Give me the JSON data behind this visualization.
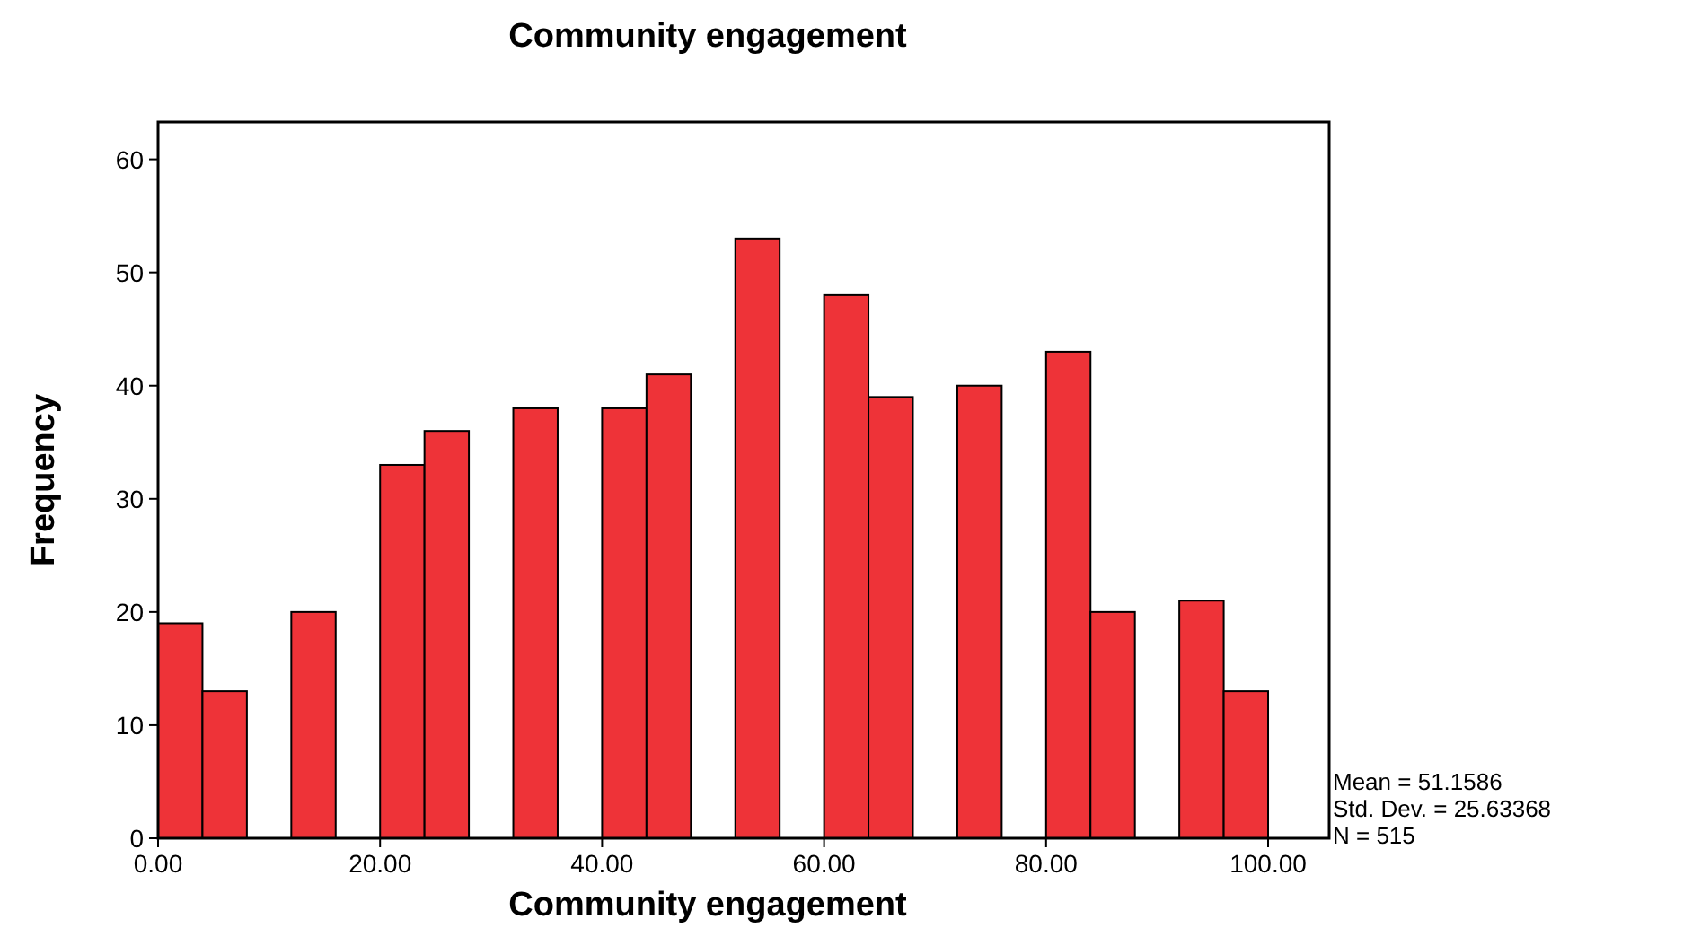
{
  "chart_data": {
    "type": "histogram",
    "title": "Community engagement",
    "xlabel": "Community engagement",
    "ylabel": "Frequency",
    "bins": [
      0,
      4,
      8,
      12,
      16,
      20,
      24,
      28,
      32,
      36,
      40,
      44,
      48,
      52,
      56,
      60,
      64,
      68,
      72,
      76,
      80,
      84,
      88,
      92,
      96,
      100
    ],
    "values": [
      19,
      13,
      0,
      20,
      0,
      33,
      36,
      0,
      38,
      0,
      38,
      41,
      0,
      53,
      0,
      48,
      39,
      0,
      40,
      0,
      43,
      20,
      0,
      21,
      13
    ],
    "color": "#ee3338",
    "xlim": [
      0,
      105.5
    ],
    "ylim": [
      0,
      63.3
    ],
    "xticks": [
      {
        "value": 0,
        "label": "0.00"
      },
      {
        "value": 20,
        "label": "20.00"
      },
      {
        "value": 40,
        "label": "40.00"
      },
      {
        "value": 60,
        "label": "60.00"
      },
      {
        "value": 80,
        "label": "80.00"
      },
      {
        "value": 100,
        "label": "100.00"
      }
    ],
    "yticks": [
      0,
      10,
      20,
      30,
      40,
      50,
      60
    ],
    "grid": false,
    "annotations": [
      "Mean = 51.1586",
      "Std. Dev. = 25.63368",
      "N = 515"
    ]
  }
}
